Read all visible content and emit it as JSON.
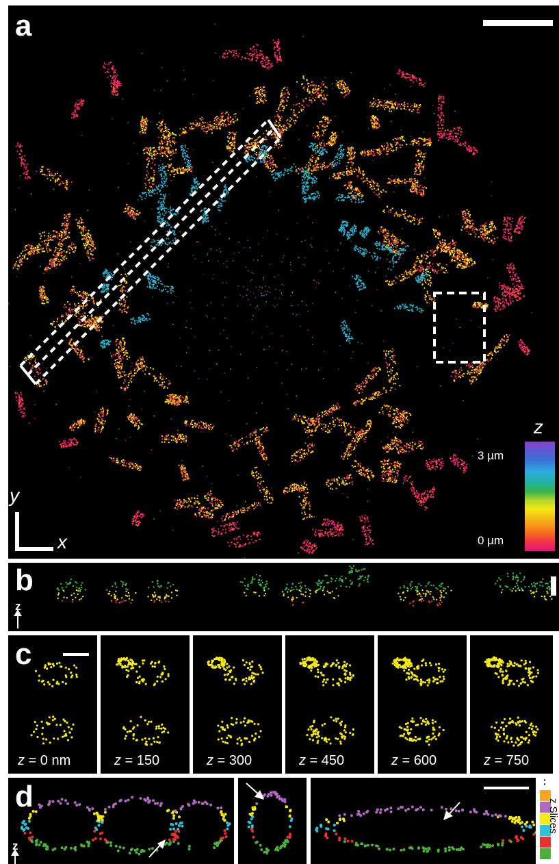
{
  "panels": {
    "a": {
      "label": "a",
      "colorbar": {
        "title": "z",
        "top_label": "3 µm",
        "bottom_label": "0 µm"
      },
      "axes": {
        "y": "y",
        "x": "x"
      }
    },
    "b": {
      "label": "b",
      "axis": "z"
    },
    "c": {
      "label": "c",
      "slices": [
        {
          "z": "z",
          "value": " = 0 nm"
        },
        {
          "z": "z",
          "value": " = 150"
        },
        {
          "z": "z",
          "value": " = 300"
        },
        {
          "z": "z",
          "value": " = 450"
        },
        {
          "z": "z",
          "value": " = 600"
        },
        {
          "z": "z",
          "value": " = 750"
        }
      ]
    },
    "d": {
      "label": "d",
      "axis": "z",
      "legend_title": "z Slices",
      "legend_colors": [
        "#f5a623",
        "#b06ac0",
        "#f5ea14",
        "#2ec4d6",
        "#e83030",
        "#4caf3a"
      ]
    }
  },
  "colors": {
    "colormap": [
      "#e8157a",
      "#f0314a",
      "#f5681e",
      "#f5a515",
      "#f5e614",
      "#b6d92a",
      "#3cb44b",
      "#20b09a",
      "#2eaee0",
      "#3b6fd4",
      "#8a3fd0"
    ],
    "slice_dots": "#f5ea14",
    "background": "#000000"
  }
}
